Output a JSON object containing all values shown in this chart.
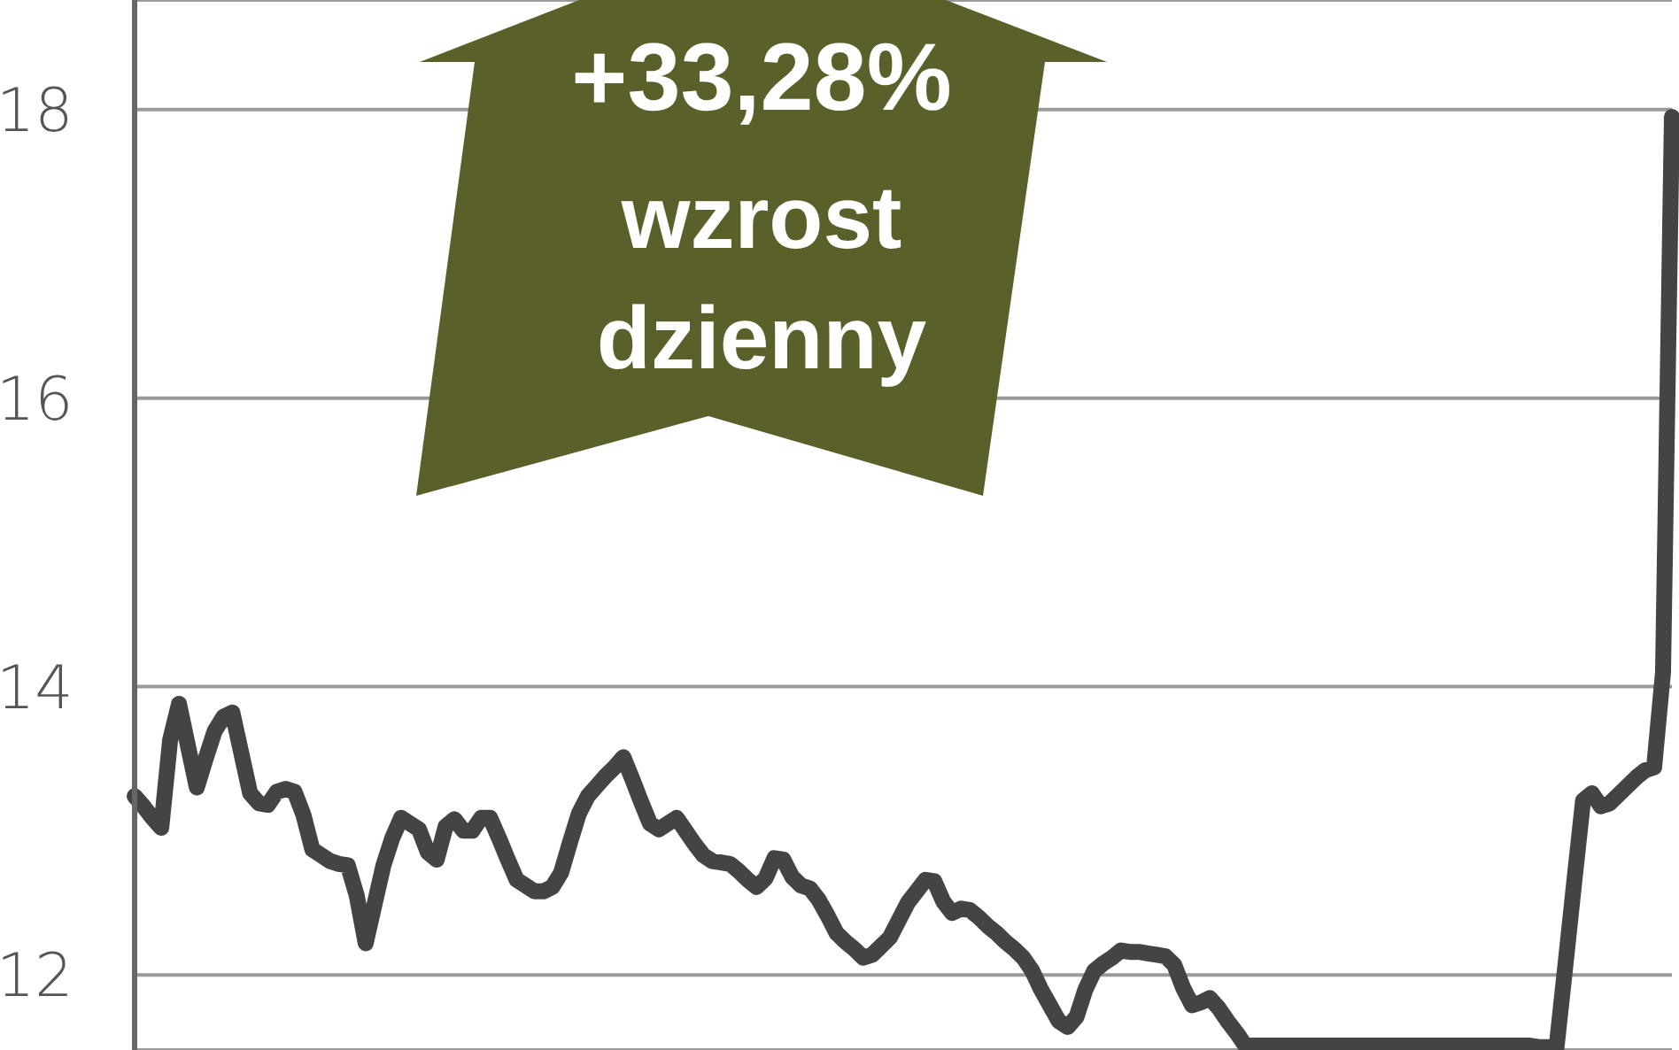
{
  "chart_data": {
    "type": "line",
    "categories": [
      null,
      null,
      null,
      null,
      null,
      null,
      null,
      null,
      null,
      null,
      null,
      null,
      null,
      null,
      null,
      null,
      null,
      null,
      null,
      null,
      null,
      null,
      null,
      null,
      null,
      null,
      null,
      null,
      null,
      null,
      null,
      null,
      null,
      null,
      null,
      null,
      null,
      null,
      null,
      null,
      null,
      null,
      null,
      null,
      null,
      null,
      null,
      null,
      null,
      null,
      null,
      null,
      null,
      null,
      null,
      null,
      null,
      null,
      null,
      null,
      null,
      null,
      null,
      null,
      null,
      null,
      null,
      null,
      null,
      null,
      null,
      null,
      null,
      null,
      null,
      null,
      null,
      null,
      null,
      null,
      null,
      null,
      null,
      null,
      null,
      null,
      null,
      null,
      null,
      null,
      null,
      null,
      null,
      null,
      null,
      null,
      null,
      null,
      null,
      null,
      null,
      null,
      null,
      null,
      null,
      null,
      null,
      null,
      null,
      null,
      null,
      null,
      null,
      null,
      null,
      null,
      null,
      null,
      null,
      null,
      null,
      null,
      null,
      null,
      null,
      null,
      null,
      null,
      null,
      null,
      null,
      null,
      null,
      null,
      null,
      null,
      null,
      null,
      null,
      null,
      null,
      null,
      null,
      null,
      null,
      null,
      null,
      null,
      null,
      null,
      null,
      null,
      null,
      null,
      null,
      null,
      null,
      null,
      null,
      null,
      null,
      null,
      null,
      null,
      null,
      null,
      null,
      null,
      null,
      null,
      null,
      null,
      null,
      null
    ],
    "series": [
      {
        "color": "#444444",
        "values": [
          13.24,
          13.17,
          13.09,
          13.02,
          13.63,
          13.88,
          13.59,
          13.3,
          13.5,
          13.69,
          13.79,
          13.82,
          13.54,
          13.26,
          13.19,
          13.18,
          13.27,
          13.29,
          13.27,
          13.11,
          12.87,
          12.83,
          12.79,
          12.77,
          12.76,
          12.55,
          12.22,
          12.49,
          12.76,
          12.95,
          13.09,
          13.05,
          13.01,
          12.85,
          12.8,
          13.03,
          13.08,
          13.0,
          13.0,
          13.09,
          13.09,
          12.95,
          12.8,
          12.66,
          12.62,
          12.58,
          12.58,
          12.61,
          12.71,
          12.92,
          13.12,
          13.24,
          13.31,
          13.38,
          13.44,
          13.51,
          13.36,
          13.2,
          13.05,
          13.01,
          13.05,
          13.09,
          13.0,
          12.91,
          12.83,
          12.79,
          12.78,
          12.77,
          12.72,
          12.66,
          12.61,
          12.67,
          12.81,
          12.8,
          12.68,
          12.62,
          12.6,
          12.52,
          12.41,
          12.29,
          12.23,
          12.18,
          12.12,
          12.14,
          12.2,
          12.26,
          12.38,
          12.5,
          12.58,
          12.66,
          12.65,
          12.51,
          12.43,
          12.46,
          12.45,
          12.4,
          12.34,
          12.29,
          12.23,
          12.18,
          12.12,
          12.03,
          11.9,
          11.79,
          11.68,
          11.64,
          11.71,
          11.9,
          12.03,
          12.08,
          12.12,
          12.17,
          12.16,
          12.16,
          12.15,
          12.14,
          12.13,
          12.07,
          11.91,
          11.79,
          11.81,
          11.84,
          11.77,
          11.68,
          11.6,
          11.51,
          null,
          null,
          null,
          null,
          null,
          null,
          null,
          null,
          null,
          null,
          null,
          null,
          null,
          null,
          null,
          null,
          null,
          null,
          null,
          null,
          null,
          null,
          null,
          null,
          null,
          null,
          null,
          null,
          null,
          null,
          null,
          11.51,
          11.5,
          11.5,
          11.49,
          12.06,
          12.64,
          13.21,
          13.26,
          13.17,
          13.19,
          13.25,
          13.31,
          13.37,
          13.42,
          13.44,
          14.1,
          17.95
        ]
      }
    ],
    "ylim": [
      11.48,
      18.76
    ],
    "yticks": [
      12,
      14,
      16,
      18
    ],
    "grid": "y",
    "tick_labels": "y",
    "marker": "none",
    "line_style": "solid",
    "annotations": [
      "+33,28%",
      "wzrost",
      "dzienny"
    ]
  }
}
